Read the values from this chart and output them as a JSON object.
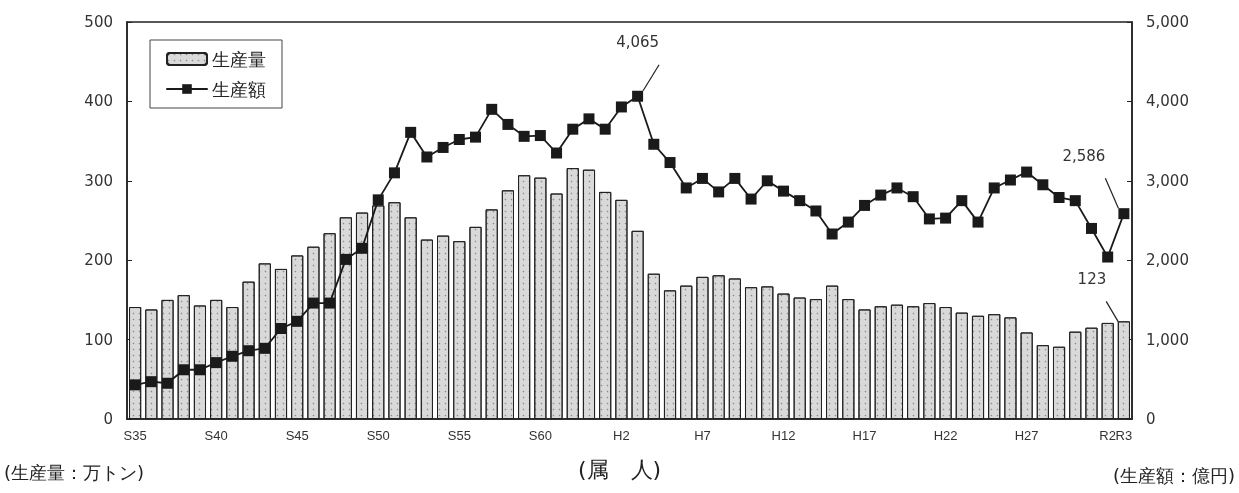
{
  "chart_data": {
    "type": "bar",
    "xlabel": "(属　人)",
    "ylabel": "(生産量：万トン)",
    "y2label": "(生産額：億円)",
    "categories": [
      "S35",
      null,
      null,
      null,
      null,
      "S40",
      null,
      null,
      null,
      null,
      "S45",
      null,
      null,
      null,
      null,
      "S50",
      null,
      null,
      null,
      null,
      "S55",
      null,
      null,
      null,
      null,
      "S60",
      null,
      null,
      null,
      null,
      "H2",
      null,
      null,
      null,
      null,
      "H7",
      null,
      null,
      null,
      null,
      "H12",
      null,
      null,
      null,
      null,
      "H17",
      null,
      null,
      null,
      null,
      "H22",
      null,
      null,
      null,
      null,
      "H27",
      null,
      null,
      null,
      null,
      "R2",
      "R3"
    ],
    "series": [
      {
        "name": "生産量",
        "color": "#d9d9d9",
        "values": [
          141,
          138,
          150,
          156,
          143,
          150,
          141,
          173,
          196,
          189,
          206,
          217,
          234,
          254,
          260,
          269,
          273,
          254,
          226,
          231,
          224,
          242,
          264,
          288,
          307,
          304,
          284,
          316,
          314,
          286,
          276,
          237,
          183,
          162,
          168,
          179,
          181,
          177,
          166,
          167,
          158,
          153,
          151,
          168,
          151,
          138,
          142,
          144,
          142,
          146,
          141,
          134,
          130,
          132,
          128,
          109,
          93,
          91,
          110,
          115,
          121,
          123
        ],
        "value_labels": [
          null,
          null,
          null,
          null,
          null,
          null,
          null,
          null,
          null,
          null,
          null,
          null,
          null,
          null,
          null,
          null,
          null,
          null,
          null,
          null,
          null,
          null,
          null,
          null,
          null,
          null,
          null,
          null,
          null,
          null,
          null,
          null,
          null,
          null,
          null,
          null,
          null,
          null,
          null,
          null,
          null,
          null,
          null,
          null,
          null,
          null,
          null,
          null,
          null,
          null,
          null,
          null,
          null,
          null,
          null,
          null,
          null,
          null,
          null,
          null,
          null,
          "123"
        ]
      },
      {
        "name": "生産額",
        "type": "line",
        "axis": "y2",
        "color": "#1a1a1a",
        "values": [
          430,
          470,
          450,
          620,
          620,
          710,
          790,
          860,
          890,
          1140,
          1230,
          1460,
          1460,
          2010,
          2150,
          2760,
          3100,
          3610,
          3300,
          3420,
          3520,
          3550,
          3900,
          3710,
          3560,
          3570,
          3350,
          3650,
          3780,
          3650,
          3930,
          4065,
          3460,
          3230,
          2910,
          3030,
          2860,
          3030,
          2770,
          3000,
          2870,
          2750,
          2620,
          2330,
          2480,
          2690,
          2820,
          2910,
          2800,
          2520,
          2530,
          2750,
          2480,
          2910,
          3010,
          3110,
          2950,
          2790,
          2750,
          2400,
          2040,
          2586
        ],
        "value_labels": [
          null,
          null,
          null,
          null,
          null,
          null,
          null,
          null,
          null,
          null,
          null,
          null,
          null,
          null,
          null,
          null,
          null,
          null,
          null,
          null,
          null,
          null,
          null,
          null,
          null,
          null,
          null,
          null,
          null,
          null,
          null,
          "4,065",
          null,
          null,
          null,
          null,
          null,
          null,
          null,
          null,
          null,
          null,
          null,
          null,
          null,
          null,
          null,
          null,
          null,
          null,
          null,
          null,
          null,
          null,
          null,
          null,
          null,
          null,
          null,
          null,
          null,
          "2,586"
        ]
      }
    ],
    "ylim": [
      0,
      500
    ],
    "yticks": [
      0,
      100,
      200,
      300,
      400,
      500
    ],
    "y2lim": [
      0,
      5000
    ],
    "y2ticks": [
      0,
      {
        "value": 1000,
        "label": "1,000"
      },
      {
        "value": 2000,
        "label": "2,000"
      },
      {
        "value": 3000,
        "label": "3,000"
      },
      {
        "value": 4000,
        "label": "4,000"
      },
      {
        "value": 5000,
        "label": "5,000"
      }
    ],
    "marker": "square",
    "line_style": "solid",
    "grid": false,
    "legend": "top left"
  }
}
